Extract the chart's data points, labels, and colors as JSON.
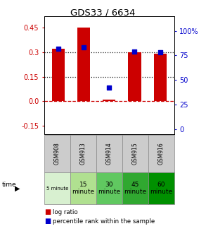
{
  "title": "GDS33 / 6634",
  "samples": [
    "GSM908",
    "GSM913",
    "GSM914",
    "GSM915",
    "GSM916"
  ],
  "time_labels_top": [
    "5 minute",
    "15\nminute",
    "30\nminute",
    "45\nminute",
    "60\nminute"
  ],
  "time_colors": [
    "#d8f0d0",
    "#b0e090",
    "#60c860",
    "#30a830",
    "#009000"
  ],
  "log_ratio": [
    0.32,
    0.45,
    0.01,
    0.3,
    0.29
  ],
  "percentile_rank": [
    82,
    83,
    42,
    79,
    78
  ],
  "bar_color": "#cc0000",
  "dot_color": "#0000cc",
  "ylim_left": [
    -0.2,
    0.52
  ],
  "ylim_right": [
    -5,
    115
  ],
  "yticks_left": [
    -0.15,
    0.0,
    0.15,
    0.3,
    0.45
  ],
  "yticks_right": [
    0,
    25,
    50,
    75,
    100
  ],
  "hline_y": [
    0.0,
    0.15,
    0.3
  ],
  "hline_styles": [
    "dashed",
    "dotted",
    "dotted"
  ],
  "hline_colors": [
    "#cc0000",
    "#222222",
    "#222222"
  ],
  "background_color": "#ffffff"
}
